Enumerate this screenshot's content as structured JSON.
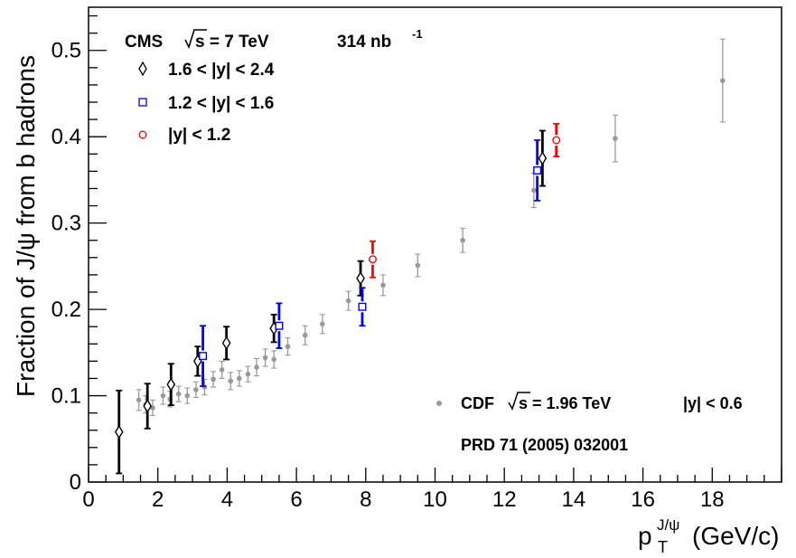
{
  "chart_data": {
    "type": "scatter",
    "xlim": [
      0,
      20
    ],
    "ylim": [
      0,
      0.55
    ],
    "x_ticks": [
      0,
      2,
      4,
      6,
      8,
      10,
      12,
      14,
      16,
      18
    ],
    "x_tick_labels": [
      "0",
      "2",
      "4",
      "6",
      "8",
      "10",
      "12",
      "14",
      "16",
      "18"
    ],
    "y_ticks": [
      0,
      0.1,
      0.2,
      0.3,
      0.4,
      0.5
    ],
    "y_tick_labels": [
      "0",
      "0.1",
      "0.2",
      "0.3",
      "0.4",
      "0.5"
    ],
    "ylabel": "Fraction of J/ψ from b hadrons",
    "xlabel": {
      "main": "p",
      "sub": "T",
      "sup": "J/ψ",
      "unit": "(GeV/c)"
    },
    "legend_header": {
      "experiment": "CMS",
      "energy": "s = 7 TeV",
      "lumi": "314 nb",
      "lumi_sup": "-1"
    },
    "legend_position": "top-left",
    "cdf_label": {
      "experiment": "CDF",
      "energy": "s = 1.96 TeV",
      "range": "|y| < 0.6",
      "reference": "PRD 71 (2005) 032001"
    },
    "series": [
      {
        "name": "1.6 < |y| < 2.4",
        "marker": "diamond-open",
        "color": "#000000",
        "points": [
          {
            "x": 0.88,
            "y": 0.058,
            "err": 0.048
          },
          {
            "x": 1.7,
            "y": 0.088,
            "err": 0.026
          },
          {
            "x": 2.38,
            "y": 0.113,
            "err": 0.024
          },
          {
            "x": 3.15,
            "y": 0.14,
            "err": 0.017
          },
          {
            "x": 3.98,
            "y": 0.161,
            "err": 0.019
          },
          {
            "x": 5.35,
            "y": 0.178,
            "err": 0.016
          },
          {
            "x": 7.85,
            "y": 0.236,
            "err": 0.02
          },
          {
            "x": 13.1,
            "y": 0.375,
            "err": 0.032
          }
        ]
      },
      {
        "name": "1.2 < |y| < 1.6",
        "marker": "square-open",
        "color": "#0000ff",
        "points": [
          {
            "x": 3.3,
            "y": 0.146,
            "err": 0.035
          },
          {
            "x": 5.5,
            "y": 0.181,
            "err": 0.026
          },
          {
            "x": 7.9,
            "y": 0.203,
            "err": 0.022
          },
          {
            "x": 12.95,
            "y": 0.361,
            "err": 0.035
          }
        ]
      },
      {
        "name": "|y| < 1.2",
        "marker": "circle-open",
        "color": "#ff0000",
        "points": [
          {
            "x": 8.2,
            "y": 0.258,
            "err": 0.021
          },
          {
            "x": 13.5,
            "y": 0.396,
            "err": 0.019
          }
        ]
      },
      {
        "name": "CDF",
        "marker": "dot",
        "color": "#999999",
        "points": [
          {
            "x": 1.45,
            "y": 0.095,
            "err": 0.012
          },
          {
            "x": 1.65,
            "y": 0.09,
            "err": 0.01
          },
          {
            "x": 1.85,
            "y": 0.086,
            "err": 0.009
          },
          {
            "x": 2.15,
            "y": 0.1,
            "err": 0.01
          },
          {
            "x": 2.35,
            "y": 0.096,
            "err": 0.009
          },
          {
            "x": 2.6,
            "y": 0.102,
            "err": 0.009
          },
          {
            "x": 2.85,
            "y": 0.1,
            "err": 0.009
          },
          {
            "x": 3.1,
            "y": 0.107,
            "err": 0.009
          },
          {
            "x": 3.35,
            "y": 0.11,
            "err": 0.009
          },
          {
            "x": 3.6,
            "y": 0.119,
            "err": 0.009
          },
          {
            "x": 3.85,
            "y": 0.13,
            "err": 0.01
          },
          {
            "x": 4.1,
            "y": 0.117,
            "err": 0.01
          },
          {
            "x": 4.35,
            "y": 0.12,
            "err": 0.009
          },
          {
            "x": 4.6,
            "y": 0.125,
            "err": 0.009
          },
          {
            "x": 4.85,
            "y": 0.133,
            "err": 0.01
          },
          {
            "x": 5.1,
            "y": 0.144,
            "err": 0.01
          },
          {
            "x": 5.35,
            "y": 0.142,
            "err": 0.01
          },
          {
            "x": 5.75,
            "y": 0.157,
            "err": 0.01
          },
          {
            "x": 6.25,
            "y": 0.17,
            "err": 0.011
          },
          {
            "x": 6.75,
            "y": 0.183,
            "err": 0.011
          },
          {
            "x": 7.5,
            "y": 0.21,
            "err": 0.011
          },
          {
            "x": 8.5,
            "y": 0.228,
            "err": 0.012
          },
          {
            "x": 9.5,
            "y": 0.251,
            "err": 0.013
          },
          {
            "x": 10.8,
            "y": 0.28,
            "err": 0.014
          },
          {
            "x": 12.85,
            "y": 0.338,
            "err": 0.02
          },
          {
            "x": 15.2,
            "y": 0.398,
            "err": 0.027
          },
          {
            "x": 18.3,
            "y": 0.465,
            "err": 0.048
          }
        ]
      }
    ]
  }
}
